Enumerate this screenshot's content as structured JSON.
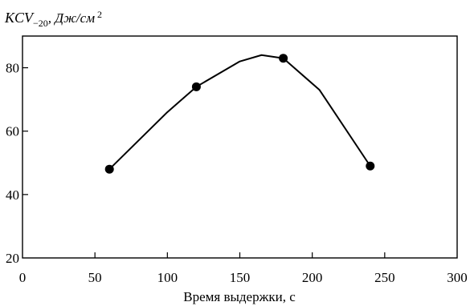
{
  "chart_data": {
    "type": "line",
    "title": "",
    "ylabel": {
      "main": "KCV",
      "sub": "−20",
      "unit": ", Дж/см",
      "sup": "2"
    },
    "xlabel": "Время выдержки, с",
    "xlim": [
      0,
      300
    ],
    "ylim": [
      20,
      90
    ],
    "xticks": [
      0,
      50,
      100,
      150,
      200,
      250,
      300
    ],
    "yticks": [
      20,
      40,
      60,
      80
    ],
    "grid": false,
    "line": {
      "x": [
        60,
        100,
        120,
        150,
        165,
        180,
        185,
        205,
        240
      ],
      "y": [
        48,
        66,
        74,
        82,
        84,
        83,
        81,
        73,
        49
      ]
    },
    "markers": {
      "x": [
        60,
        120,
        180,
        240
      ],
      "y": [
        48,
        74,
        83,
        49
      ]
    },
    "colors": {
      "line": "#000000",
      "marker": "#000000"
    }
  }
}
